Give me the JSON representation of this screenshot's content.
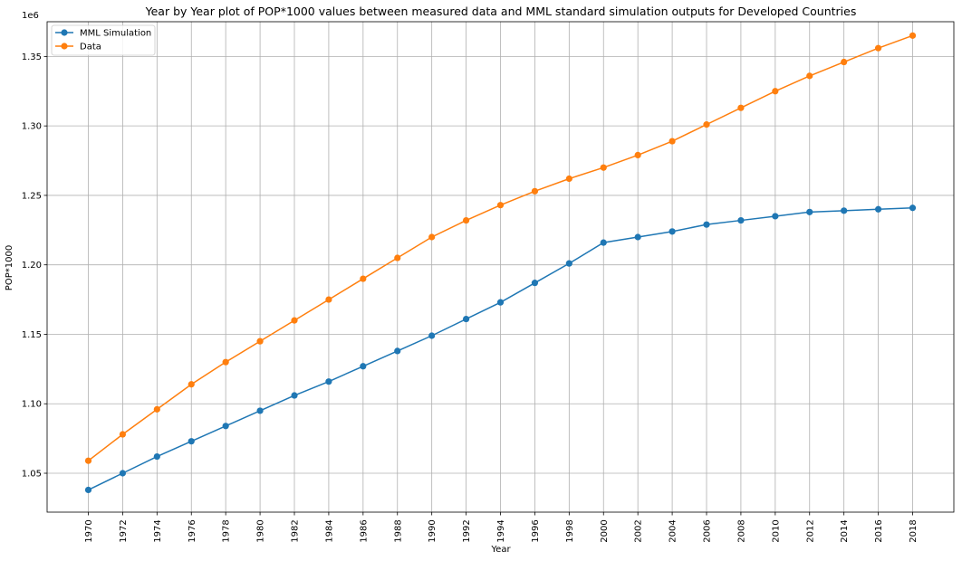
{
  "chart_data": {
    "type": "line",
    "title": "Year by Year plot of POP*1000 values between measured data and MML standard simulation outputs for Developed Countries",
    "xlabel": "Year",
    "ylabel": "POP*1000",
    "offset_text": "1e6",
    "x": [
      1970,
      1972,
      1974,
      1976,
      1978,
      1980,
      1982,
      1984,
      1986,
      1988,
      1990,
      1992,
      1994,
      1996,
      1998,
      2000,
      2002,
      2004,
      2006,
      2008,
      2010,
      2012,
      2014,
      2016,
      2018
    ],
    "xlim": [
      1967.6,
      2020.4
    ],
    "ylim": [
      1022000,
      1375000
    ],
    "yticks": [
      1050000,
      1100000,
      1150000,
      1200000,
      1250000,
      1300000,
      1350000
    ],
    "ytick_labels": [
      "1.05",
      "1.10",
      "1.15",
      "1.20",
      "1.25",
      "1.30",
      "1.35"
    ],
    "grid": true,
    "legend_position": "top-left",
    "series": [
      {
        "name": "MML Simulation",
        "color": "#1f77b4",
        "values": [
          1038000,
          1050000,
          1062000,
          1073000,
          1084000,
          1095000,
          1106000,
          1116000,
          1127000,
          1138000,
          1149000,
          1161000,
          1173000,
          1187000,
          1201000,
          1216000,
          1220000,
          1224000,
          1229000,
          1232000,
          1235000,
          1238000,
          1239000,
          1240000,
          1241000
        ]
      },
      {
        "name": "Data",
        "color": "#ff7f0e",
        "values": [
          1059000,
          1078000,
          1096000,
          1114000,
          1130000,
          1145000,
          1160000,
          1175000,
          1190000,
          1205000,
          1220000,
          1232000,
          1243000,
          1253000,
          1262000,
          1270000,
          1279000,
          1289000,
          1301000,
          1313000,
          1325000,
          1336000,
          1346000,
          1356000,
          1365000
        ]
      }
    ]
  }
}
